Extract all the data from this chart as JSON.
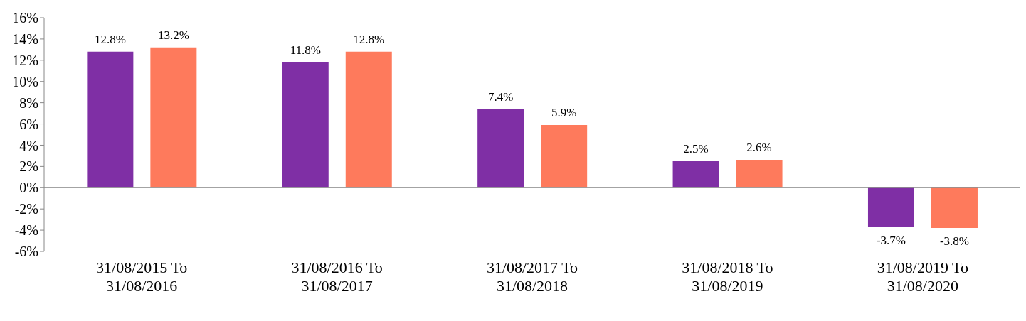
{
  "chart_data": {
    "type": "bar",
    "categories": [
      "31/08/2015 To 31/08/2016",
      "31/08/2016 To 31/08/2017",
      "31/08/2017 To 31/08/2018",
      "31/08/2018 To 31/08/2019",
      "31/08/2019 To 31/08/2020"
    ],
    "series": [
      {
        "color": "#7f2fa5",
        "values": [
          12.8,
          11.8,
          7.4,
          2.5,
          -3.7
        ],
        "value_labels": [
          "12.8%",
          "11.8%",
          "7.4%",
          "2.5%",
          "-3.7%"
        ]
      },
      {
        "color": "#fe7a5c",
        "values": [
          13.2,
          12.8,
          5.9,
          2.6,
          -3.8
        ],
        "value_labels": [
          "13.2%",
          "12.8%",
          "5.9%",
          "2.6%",
          "-3.8%"
        ]
      }
    ],
    "ylim": [
      -6,
      16
    ],
    "yticks": [
      {
        "value": -6,
        "label": "-6%"
      },
      {
        "value": -4,
        "label": "-4%"
      },
      {
        "value": -2,
        "label": "-2%"
      },
      {
        "value": 0,
        "label": "0%"
      },
      {
        "value": 2,
        "label": "2%"
      },
      {
        "value": 4,
        "label": "4%"
      },
      {
        "value": 6,
        "label": "6%"
      },
      {
        "value": 8,
        "label": "8%"
      },
      {
        "value": 10,
        "label": "10%"
      },
      {
        "value": 12,
        "label": "12%"
      },
      {
        "value": 14,
        "label": "14%"
      },
      {
        "value": 16,
        "label": "16%"
      }
    ],
    "ref_lines": [
      {
        "axis": "y",
        "value": 0,
        "color": "#888888"
      }
    ],
    "grid": false,
    "legend": false
  }
}
